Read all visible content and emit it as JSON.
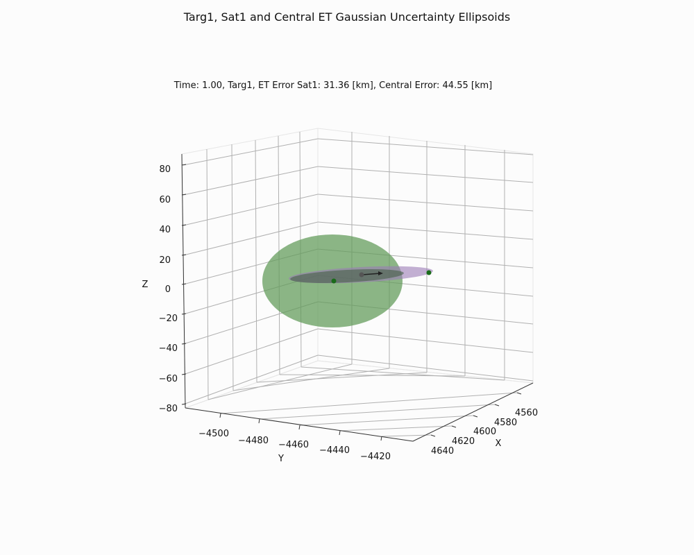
{
  "chart_data": {
    "type": "3d-scatter-ellipsoids",
    "title": "Targ1, Sat1 and Central ET Gaussian Uncertainty Ellipsoids",
    "subtitle": "Time: 1.00, Targ1, ET Error Sat1: 31.36 [km], Central Error: 44.55 [km]",
    "xlabel": "X",
    "ylabel": "Y",
    "zlabel": "Z",
    "x_ticks": [
      "4560",
      "4580",
      "4600",
      "4620",
      "4640"
    ],
    "y_ticks": [
      "−4500",
      "−4480",
      "−4460",
      "−4440",
      "−4420"
    ],
    "z_ticks": [
      "80",
      "60",
      "40",
      "20",
      "0",
      "−20",
      "−40",
      "−60",
      "−80"
    ],
    "grid": true,
    "ellipsoids": [
      {
        "name": "central",
        "color": "#5f9a58"
      },
      {
        "name": "sat1",
        "color": "#9b7bb5"
      }
    ],
    "points": [
      {
        "color": "#1a6b1a"
      },
      {
        "color": "#1a6b1a"
      },
      {
        "color": "#555555"
      }
    ],
    "velocity_arrow_color": "#222222"
  }
}
